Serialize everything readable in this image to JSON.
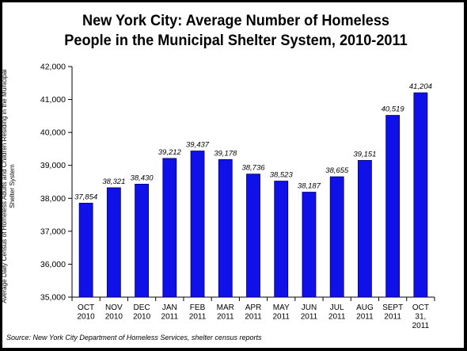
{
  "title_lines": [
    "New York City:  Average Number of Homeless",
    "People in the Municipal Shelter System, 2010-2011"
  ],
  "ylabel_lines": [
    "Average Daily Census of Homeless Adults and Children Residing in the Municipal",
    "Shelter System"
  ],
  "source": "Source:  New York City Department of Homeless Services, shelter census reports",
  "colors": {
    "bar_fill": "#1010e8",
    "bar_edge": "#000060",
    "frame": "#000000"
  },
  "chart_data": {
    "type": "bar",
    "title": "New York City:  Average Number of Homeless People in the Municipal Shelter System, 2010-2011",
    "xlabel": "",
    "ylabel": "Average Daily Census of Homeless Adults and Children Residing in the Municipal Shelter System",
    "categories": [
      [
        "OCT",
        "2010"
      ],
      [
        "NOV",
        "2010"
      ],
      [
        "DEC",
        "2010"
      ],
      [
        "JAN",
        "2011"
      ],
      [
        "FEB",
        "2011"
      ],
      [
        "MAR",
        "2011"
      ],
      [
        "APR",
        "2011"
      ],
      [
        "MAY",
        "2011"
      ],
      [
        "JUN",
        "2011"
      ],
      [
        "JUL",
        "2011"
      ],
      [
        "AUG",
        "2011"
      ],
      [
        "SEPT",
        "2011"
      ],
      [
        "OCT",
        "31,",
        "2011"
      ]
    ],
    "values": [
      37854,
      38321,
      38430,
      39212,
      39437,
      39178,
      38736,
      38523,
      38187,
      38655,
      39151,
      40519,
      41204
    ],
    "value_labels": [
      "37,854",
      "38,321",
      "38,430",
      "39,212",
      "39,437",
      "39,178",
      "38,736",
      "38,523",
      "38,187",
      "38,655",
      "39,151",
      "40,519",
      "41,204"
    ],
    "ylim": [
      35000,
      42000
    ],
    "yticks": [
      35000,
      36000,
      37000,
      38000,
      39000,
      40000,
      41000,
      42000
    ],
    "ytick_labels": [
      "35,000",
      "36,000",
      "37,000",
      "38,000",
      "39,000",
      "40,000",
      "41,000",
      "42,000"
    ],
    "grid": false,
    "legend": "none"
  }
}
